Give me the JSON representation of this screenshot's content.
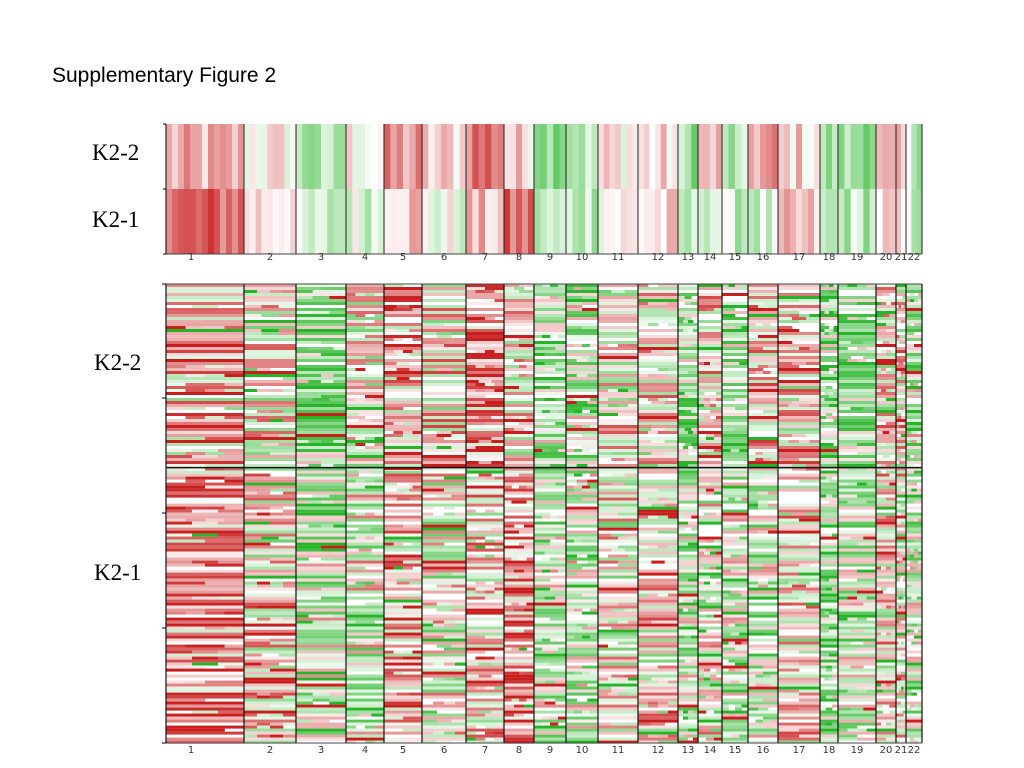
{
  "title": "Supplementary Figure 2",
  "chart_data": [
    {
      "type": "heatmap",
      "panel": "summary",
      "rows": [
        "K2-2",
        "K2-1"
      ],
      "chromosomes": [
        "1",
        "2",
        "3",
        "4",
        "5",
        "6",
        "7",
        "8",
        "9",
        "10",
        "11",
        "12",
        "13",
        "14",
        "15",
        "16",
        "17",
        "18",
        "19",
        "20",
        "21",
        "22"
      ],
      "chromosome_widths": [
        78,
        52,
        50,
        38,
        38,
        44,
        38,
        30,
        32,
        32,
        40,
        40,
        20,
        24,
        26,
        30,
        42,
        18,
        38,
        20,
        10,
        16
      ],
      "scale": "copy number log-ratio (red = gain, green = loss)",
      "color_gain": "#cc1f1f",
      "color_loss": "#2fb52f",
      "color_neutral": "#ffffff"
    },
    {
      "type": "heatmap",
      "panel": "samples",
      "groups": [
        {
          "name": "K2-2",
          "sample_fraction": 0.4
        },
        {
          "name": "K2-1",
          "sample_fraction": 0.6
        }
      ],
      "chromosomes": [
        "1",
        "2",
        "3",
        "4",
        "5",
        "6",
        "7",
        "8",
        "9",
        "10",
        "11",
        "12",
        "13",
        "14",
        "15",
        "16",
        "17",
        "18",
        "19",
        "20",
        "21",
        "22"
      ],
      "scale": "copy number log-ratio per sample (red = gain, green = loss)"
    }
  ]
}
